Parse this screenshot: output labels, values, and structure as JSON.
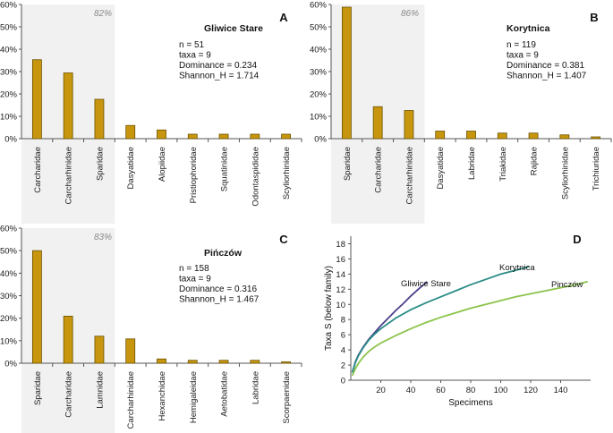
{
  "chart_data": [
    {
      "panel": "A",
      "type": "bar",
      "title": "Gliwice Stare",
      "highlight_label": "82%",
      "highlight_count": 3,
      "stats": [
        "n = 51",
        "taxa = 9",
        "Dominance = 0.234",
        "Shannon_H = 1.714"
      ],
      "ylim": [
        0,
        60
      ],
      "yticks": [
        "0%",
        "10%",
        "20%",
        "30%",
        "40%",
        "50%",
        "60%"
      ],
      "categories": [
        "Carcharidae",
        "Carcharhinidae",
        "Sparidae",
        "Dasyatidae",
        "Alopiidae",
        "Pristiophoridae",
        "Squatinidae",
        "Odontaspididae",
        "Scyliorhinidae"
      ],
      "values": [
        35.3,
        29.4,
        17.6,
        5.9,
        3.9,
        2.0,
        2.0,
        2.0,
        2.0
      ]
    },
    {
      "panel": "B",
      "type": "bar",
      "title": "Korytnica",
      "highlight_label": "86%",
      "highlight_count": 3,
      "stats": [
        "n = 119",
        "taxa = 9",
        "Dominance = 0.381",
        "Shannon_H = 1.407"
      ],
      "ylim": [
        0,
        60
      ],
      "yticks": [
        "0%",
        "10%",
        "20%",
        "30%",
        "40%",
        "50%",
        "60%"
      ],
      "categories": [
        "Sparidae",
        "Carcharidae",
        "Carcharhinidae",
        "Dasyatidae",
        "Labridae",
        "Triakidae",
        "Rajidae",
        "Scyliorhinidae",
        "Trichiuridae"
      ],
      "values": [
        58.8,
        14.3,
        12.6,
        3.4,
        3.4,
        2.5,
        2.5,
        1.7,
        0.8
      ]
    },
    {
      "panel": "C",
      "type": "bar",
      "title": "Pińczów",
      "highlight_label": "83%",
      "highlight_count": 3,
      "stats": [
        "n = 158",
        "taxa = 9",
        "Dominance = 0.316",
        "Shannon_H = 1.467"
      ],
      "ylim": [
        0,
        60
      ],
      "yticks": [
        "0%",
        "10%",
        "20%",
        "30%",
        "40%",
        "50%",
        "60%"
      ],
      "categories": [
        "Sparidae",
        "Carcharidae",
        "Lamnidae",
        "Carcharhinidae",
        "Hexanchidae",
        "Hemigaleidae",
        "Aetobatidae",
        "Labridae",
        "Scorpaenidae"
      ],
      "values": [
        50.0,
        20.9,
        12.0,
        10.8,
        1.9,
        1.3,
        1.3,
        1.3,
        0.6
      ]
    },
    {
      "panel": "D",
      "type": "line",
      "title": "",
      "xlabel": "Specimens",
      "ylabel": "Taxa S (below family)",
      "xlim": [
        0,
        160
      ],
      "ylim": [
        0,
        19
      ],
      "xticks": [
        20,
        40,
        60,
        80,
        100,
        120,
        140
      ],
      "xtick_labels": [
        "20",
        "40",
        "60",
        "80",
        "100",
        "120",
        "140"
      ],
      "yticks": [
        0,
        2,
        4,
        6,
        8,
        10,
        12,
        14,
        16,
        18
      ],
      "ytick_labels": [
        "0",
        "2",
        "4",
        "6",
        "8",
        "10",
        "12",
        "14",
        "16",
        "18"
      ],
      "series": [
        {
          "name": "Gliwice Stare",
          "color": "#4a3f8c",
          "x": [
            1,
            3,
            5,
            8,
            12,
            16,
            20,
            25,
            30,
            35,
            40,
            45,
            51
          ],
          "y": [
            1.0,
            2.4,
            3.3,
            4.3,
            5.4,
            6.3,
            7.2,
            8.2,
            9.2,
            10.1,
            11.1,
            12.0,
            13.0
          ]
        },
        {
          "name": "Korytnica",
          "color": "#2a8c86",
          "x": [
            1,
            3,
            5,
            8,
            12,
            16,
            20,
            30,
            40,
            50,
            60,
            70,
            80,
            90,
            100,
            110,
            119
          ],
          "y": [
            1.0,
            2.3,
            3.2,
            4.2,
            5.3,
            6.1,
            6.8,
            8.2,
            9.3,
            10.2,
            11.0,
            11.8,
            12.6,
            13.3,
            14.0,
            14.5,
            15.0
          ]
        },
        {
          "name": "Pinczów",
          "color": "#8bc34a",
          "x": [
            1,
            3,
            5,
            8,
            12,
            16,
            20,
            30,
            40,
            50,
            60,
            70,
            80,
            90,
            100,
            110,
            120,
            130,
            140,
            150,
            158
          ],
          "y": [
            0.6,
            1.5,
            2.2,
            3.0,
            3.8,
            4.4,
            4.9,
            5.9,
            6.8,
            7.6,
            8.3,
            8.9,
            9.5,
            10.0,
            10.5,
            11.0,
            11.4,
            11.8,
            12.2,
            12.6,
            13.0
          ]
        }
      ]
    }
  ],
  "colors": {
    "bar_fill": "#c8960e",
    "bar_stroke": "#6b5200",
    "highlight_bg": "#f0f1f0",
    "axis": "#555555"
  }
}
